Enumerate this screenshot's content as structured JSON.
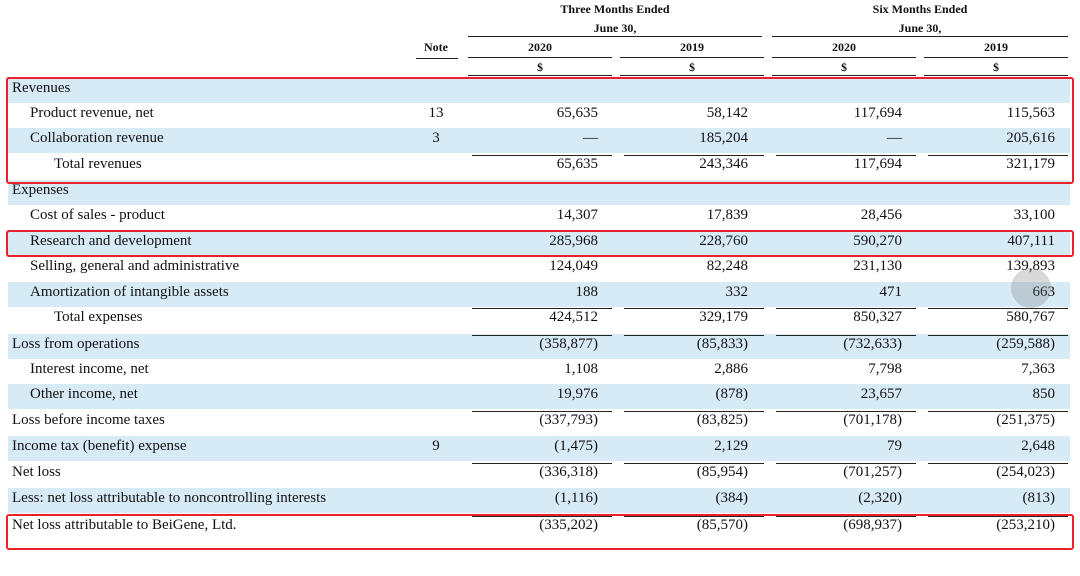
{
  "header": {
    "group1": {
      "line1": "Three Months Ended",
      "line2": "June 30,"
    },
    "group2": {
      "line1": "Six Months Ended",
      "line2": "June 30,"
    },
    "note_label": "Note",
    "years": [
      "2020",
      "2019",
      "2020",
      "2019"
    ],
    "currency": [
      "$",
      "$",
      "$",
      "$"
    ]
  },
  "rows": [
    {
      "label": "Revenues",
      "note": "",
      "values": [
        "",
        "",
        "",
        ""
      ]
    },
    {
      "label": "Product revenue, net",
      "note": "13",
      "values": [
        "65,635",
        "58,142",
        "117,694",
        "115,563"
      ]
    },
    {
      "label": "Collaboration revenue",
      "note": "3",
      "values": [
        "—",
        "185,204",
        "—",
        "205,616"
      ]
    },
    {
      "label": "Total revenues",
      "note": "",
      "values": [
        "65,635",
        "243,346",
        "117,694",
        "321,179"
      ]
    },
    {
      "label": "Expenses",
      "note": "",
      "values": [
        "",
        "",
        "",
        ""
      ]
    },
    {
      "label": "Cost of sales - product",
      "note": "",
      "values": [
        "14,307",
        "17,839",
        "28,456",
        "33,100"
      ]
    },
    {
      "label": "Research and development",
      "note": "",
      "values": [
        "285,968",
        "228,760",
        "590,270",
        "407,111"
      ]
    },
    {
      "label": "Selling, general and administrative",
      "note": "",
      "values": [
        "124,049",
        "82,248",
        "231,130",
        "139,893"
      ]
    },
    {
      "label": "Amortization of intangible assets",
      "note": "",
      "values": [
        "188",
        "332",
        "471",
        "663"
      ]
    },
    {
      "label": "Total expenses",
      "note": "",
      "values": [
        "424,512",
        "329,179",
        "850,327",
        "580,767"
      ]
    },
    {
      "label": "Loss from operations",
      "note": "",
      "values": [
        "(358,877)",
        "(85,833)",
        "(732,633)",
        "(259,588)"
      ]
    },
    {
      "label": "Interest income, net",
      "note": "",
      "values": [
        "1,108",
        "2,886",
        "7,798",
        "7,363"
      ]
    },
    {
      "label": "Other income, net",
      "note": "",
      "values": [
        "19,976",
        "(878)",
        "23,657",
        "850"
      ]
    },
    {
      "label": "Loss before income taxes",
      "note": "",
      "values": [
        "(337,793)",
        "(83,825)",
        "(701,178)",
        "(251,375)"
      ]
    },
    {
      "label": "Income tax (benefit) expense",
      "note": "9",
      "values": [
        "(1,475)",
        "2,129",
        "79",
        "2,648"
      ]
    },
    {
      "label": "Net loss",
      "note": "",
      "values": [
        "(336,318)",
        "(85,954)",
        "(701,257)",
        "(254,023)"
      ]
    },
    {
      "label": "Less: net loss attributable to noncontrolling interests",
      "note": "",
      "values": [
        "(1,116)",
        "(384)",
        "(2,320)",
        "(813)"
      ]
    },
    {
      "label": "Net loss attributable to BeiGene, Ltd.",
      "note": "",
      "values": [
        "(335,202)",
        "(85,570)",
        "(698,937)",
        "(253,210)"
      ]
    }
  ],
  "colors": {
    "row_shade": "#d7ebf7",
    "highlight_box": "#e8222a"
  }
}
